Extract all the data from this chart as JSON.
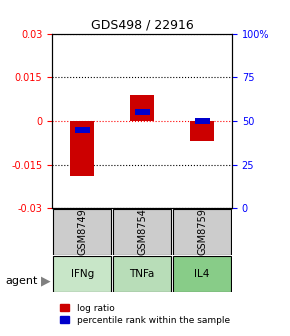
{
  "title": "GDS498 / 22916",
  "samples": [
    "GSM8749",
    "GSM8754",
    "GSM8759"
  ],
  "agents": [
    "IFNg",
    "TNFa",
    "IL4"
  ],
  "log_ratios": [
    -0.019,
    0.009,
    -0.007
  ],
  "percentile_ranks": [
    0.45,
    0.55,
    0.5
  ],
  "ylim_left": [
    -0.03,
    0.03
  ],
  "ylim_right": [
    0,
    1.0
  ],
  "yticks_left": [
    -0.03,
    -0.015,
    0,
    0.015,
    0.03
  ],
  "yticks_right": [
    0,
    0.25,
    0.5,
    0.75,
    1.0
  ],
  "ytick_labels_left": [
    "-0.03",
    "-0.015",
    "0",
    "0.015",
    "0.03"
  ],
  "ytick_labels_right": [
    "0",
    "25",
    "75",
    "100%"
  ],
  "ytick_vals_right_label": [
    0,
    0.25,
    0.75,
    1.0
  ],
  "bar_color_red": "#cc0000",
  "bar_color_blue": "#0000cc",
  "agent_colors": [
    "#aaddaa",
    "#aaddaa",
    "#88dd88"
  ],
  "sample_box_color": "#cccccc",
  "bar_width": 0.4,
  "blue_bar_width": 0.25,
  "blue_bar_height": 0.002
}
